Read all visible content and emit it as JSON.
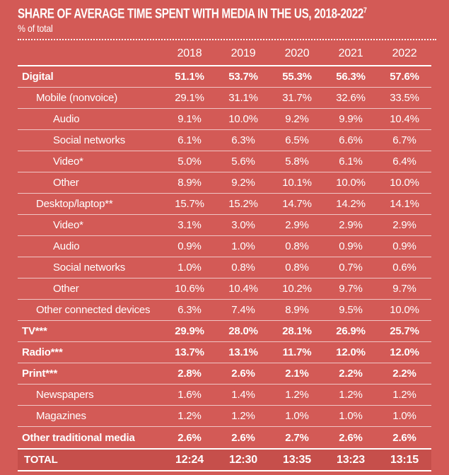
{
  "header": {
    "title": "SHARE OF AVERAGE TIME SPENT WITH MEDIA IN THE US, 2018-2022",
    "title_superscript": "7",
    "subtitle": "% of total"
  },
  "colors": {
    "background": "#D35A56",
    "total_row_background": "#C64F4B",
    "text": "#FFFFFF",
    "row_divider": "rgba(255,255,255,0.65)"
  },
  "table": {
    "columns": [
      "2018",
      "2019",
      "2020",
      "2021",
      "2022"
    ],
    "rows": [
      {
        "label": "Digital",
        "indent": 0,
        "bold": true,
        "values": [
          "51.1%",
          "53.7%",
          "55.3%",
          "56.3%",
          "57.6%"
        ]
      },
      {
        "label": "Mobile (nonvoice)",
        "indent": 1,
        "bold": false,
        "values": [
          "29.1%",
          "31.1%",
          "31.7%",
          "32.6%",
          "33.5%"
        ]
      },
      {
        "label": "Audio",
        "indent": 2,
        "bold": false,
        "values": [
          "9.1%",
          "10.0%",
          "9.2%",
          "9.9%",
          "10.4%"
        ]
      },
      {
        "label": "Social networks",
        "indent": 2,
        "bold": false,
        "values": [
          "6.1%",
          "6.3%",
          "6.5%",
          "6.6%",
          "6.7%"
        ]
      },
      {
        "label": "Video*",
        "indent": 2,
        "bold": false,
        "values": [
          "5.0%",
          "5.6%",
          "5.8%",
          "6.1%",
          "6.4%"
        ]
      },
      {
        "label": "Other",
        "indent": 2,
        "bold": false,
        "values": [
          "8.9%",
          "9.2%",
          "10.1%",
          "10.0%",
          "10.0%"
        ]
      },
      {
        "label": "Desktop/laptop**",
        "indent": 1,
        "bold": false,
        "values": [
          "15.7%",
          "15.2%",
          "14.7%",
          "14.2%",
          "14.1%"
        ]
      },
      {
        "label": "Video*",
        "indent": 2,
        "bold": false,
        "values": [
          "3.1%",
          "3.0%",
          "2.9%",
          "2.9%",
          "2.9%"
        ]
      },
      {
        "label": "Audio",
        "indent": 2,
        "bold": false,
        "values": [
          "0.9%",
          "1.0%",
          "0.8%",
          "0.9%",
          "0.9%"
        ]
      },
      {
        "label": "Social networks",
        "indent": 2,
        "bold": false,
        "values": [
          "1.0%",
          "0.8%",
          "0.8%",
          "0.7%",
          "0.6%"
        ]
      },
      {
        "label": "Other",
        "indent": 2,
        "bold": false,
        "values": [
          "10.6%",
          "10.4%",
          "10.2%",
          "9.7%",
          "9.7%"
        ]
      },
      {
        "label": "Other connected devices",
        "indent": 1,
        "bold": false,
        "values": [
          "6.3%",
          "7.4%",
          "8.9%",
          "9.5%",
          "10.0%"
        ]
      },
      {
        "label": "TV***",
        "indent": 0,
        "bold": true,
        "values": [
          "29.9%",
          "28.0%",
          "28.1%",
          "26.9%",
          "25.7%"
        ]
      },
      {
        "label": "Radio***",
        "indent": 0,
        "bold": true,
        "values": [
          "13.7%",
          "13.1%",
          "11.7%",
          "12.0%",
          "12.0%"
        ]
      },
      {
        "label": "Print***",
        "indent": 0,
        "bold": true,
        "values": [
          "2.8%",
          "2.6%",
          "2.1%",
          "2.2%",
          "2.2%"
        ]
      },
      {
        "label": "Newspapers",
        "indent": 1,
        "bold": false,
        "values": [
          "1.6%",
          "1.4%",
          "1.2%",
          "1.2%",
          "1.2%"
        ]
      },
      {
        "label": "Magazines",
        "indent": 1,
        "bold": false,
        "values": [
          "1.2%",
          "1.2%",
          "1.0%",
          "1.0%",
          "1.0%"
        ]
      },
      {
        "label": "Other traditional media",
        "indent": 0,
        "bold": true,
        "values": [
          "2.6%",
          "2.6%",
          "2.7%",
          "2.6%",
          "2.6%"
        ]
      }
    ],
    "total_row": {
      "label": "TOTAL",
      "values": [
        "12:24",
        "12:30",
        "13:35",
        "13:23",
        "13:15"
      ]
    }
  },
  "chart_data": {
    "type": "table",
    "title": "Share of Average Time Spent with Media in the US, 2018-2022",
    "unit": "% of total (TOTAL row in hours:minutes)",
    "columns": [
      "2018",
      "2019",
      "2020",
      "2021",
      "2022"
    ],
    "rows": [
      {
        "label": "Digital",
        "level": 0,
        "values": [
          51.1,
          53.7,
          55.3,
          56.3,
          57.6
        ]
      },
      {
        "label": "Mobile (nonvoice)",
        "level": 1,
        "values": [
          29.1,
          31.1,
          31.7,
          32.6,
          33.5
        ]
      },
      {
        "label": "Audio",
        "level": 2,
        "values": [
          9.1,
          10.0,
          9.2,
          9.9,
          10.4
        ]
      },
      {
        "label": "Social networks",
        "level": 2,
        "values": [
          6.1,
          6.3,
          6.5,
          6.6,
          6.7
        ]
      },
      {
        "label": "Video*",
        "level": 2,
        "values": [
          5.0,
          5.6,
          5.8,
          6.1,
          6.4
        ]
      },
      {
        "label": "Other",
        "level": 2,
        "values": [
          8.9,
          9.2,
          10.1,
          10.0,
          10.0
        ]
      },
      {
        "label": "Desktop/laptop**",
        "level": 1,
        "values": [
          15.7,
          15.2,
          14.7,
          14.2,
          14.1
        ]
      },
      {
        "label": "Video*",
        "level": 2,
        "values": [
          3.1,
          3.0,
          2.9,
          2.9,
          2.9
        ]
      },
      {
        "label": "Audio",
        "level": 2,
        "values": [
          0.9,
          1.0,
          0.8,
          0.9,
          0.9
        ]
      },
      {
        "label": "Social networks",
        "level": 2,
        "values": [
          1.0,
          0.8,
          0.8,
          0.7,
          0.6
        ]
      },
      {
        "label": "Other",
        "level": 2,
        "values": [
          10.6,
          10.4,
          10.2,
          9.7,
          9.7
        ]
      },
      {
        "label": "Other connected devices",
        "level": 1,
        "values": [
          6.3,
          7.4,
          8.9,
          9.5,
          10.0
        ]
      },
      {
        "label": "TV***",
        "level": 0,
        "values": [
          29.9,
          28.0,
          28.1,
          26.9,
          25.7
        ]
      },
      {
        "label": "Radio***",
        "level": 0,
        "values": [
          13.7,
          13.1,
          11.7,
          12.0,
          12.0
        ]
      },
      {
        "label": "Print***",
        "level": 0,
        "values": [
          2.8,
          2.6,
          2.1,
          2.2,
          2.2
        ]
      },
      {
        "label": "Newspapers",
        "level": 1,
        "values": [
          1.6,
          1.4,
          1.2,
          1.2,
          1.2
        ]
      },
      {
        "label": "Magazines",
        "level": 1,
        "values": [
          1.2,
          1.2,
          1.0,
          1.0,
          1.0
        ]
      },
      {
        "label": "Other traditional media",
        "level": 0,
        "values": [
          2.6,
          2.6,
          2.7,
          2.6,
          2.6
        ]
      },
      {
        "label": "TOTAL",
        "level": 0,
        "values": [
          "12:24",
          "12:30",
          "13:35",
          "13:23",
          "13:15"
        ]
      }
    ]
  }
}
